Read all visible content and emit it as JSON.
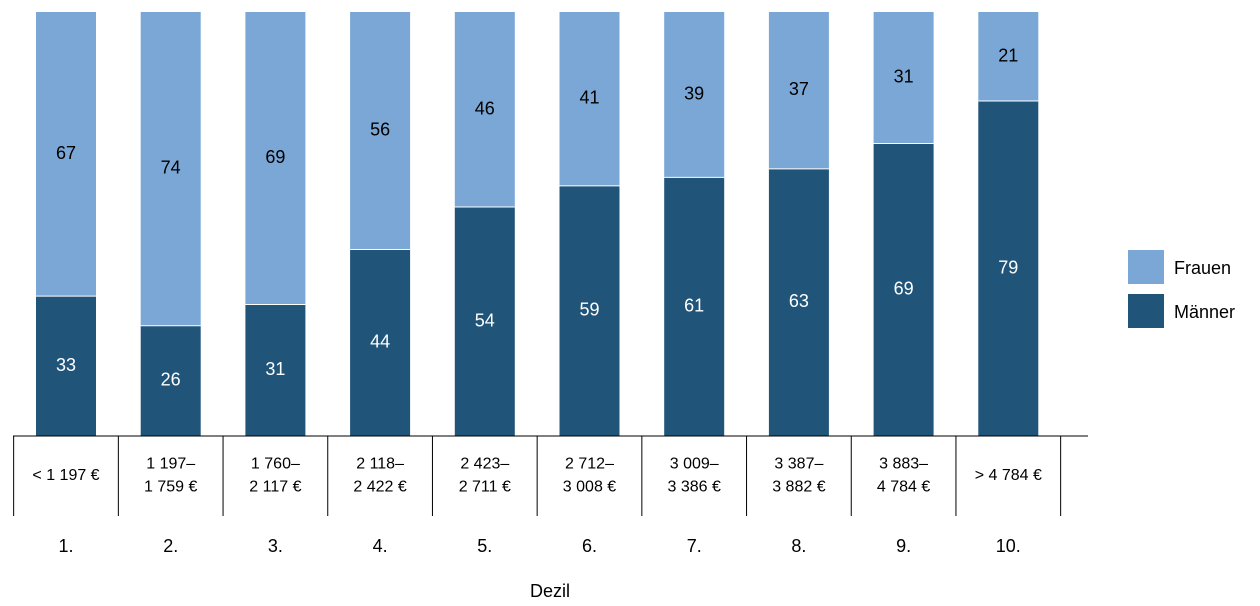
{
  "chart_data": {
    "type": "bar",
    "stacked": true,
    "normalized_percent": true,
    "title": "",
    "xlabel": "Dezil",
    "ylabel": "",
    "ylim": [
      0,
      100
    ],
    "deciles": [
      "1.",
      "2.",
      "3.",
      "4.",
      "5.",
      "6.",
      "7.",
      "8.",
      "9.",
      "10."
    ],
    "income_ranges": [
      [
        "< 1 197 €"
      ],
      [
        "1 197–",
        "1 759 €"
      ],
      [
        "1 760–",
        "2 117 €"
      ],
      [
        "2 118–",
        "2 422 €"
      ],
      [
        "2 423–",
        "2 711 €"
      ],
      [
        "2 712–",
        "3 008 €"
      ],
      [
        "3 009–",
        "3 386 €"
      ],
      [
        "3 387–",
        "3 882 €"
      ],
      [
        "3 883–",
        "4 784 €"
      ],
      [
        "> 4 784 €"
      ]
    ],
    "series": [
      {
        "name": "Männer",
        "color": "#215479",
        "label_color": "#ffffff",
        "values": [
          33,
          26,
          31,
          44,
          54,
          59,
          61,
          63,
          69,
          79
        ]
      },
      {
        "name": "Frauen",
        "color": "#7aa7d5",
        "label_color": "#000000",
        "values": [
          67,
          74,
          69,
          56,
          46,
          41,
          39,
          37,
          31,
          21
        ]
      }
    ],
    "legend": {
      "placement": "right",
      "order": [
        "Frauen",
        "Männer"
      ]
    },
    "grid": false
  }
}
